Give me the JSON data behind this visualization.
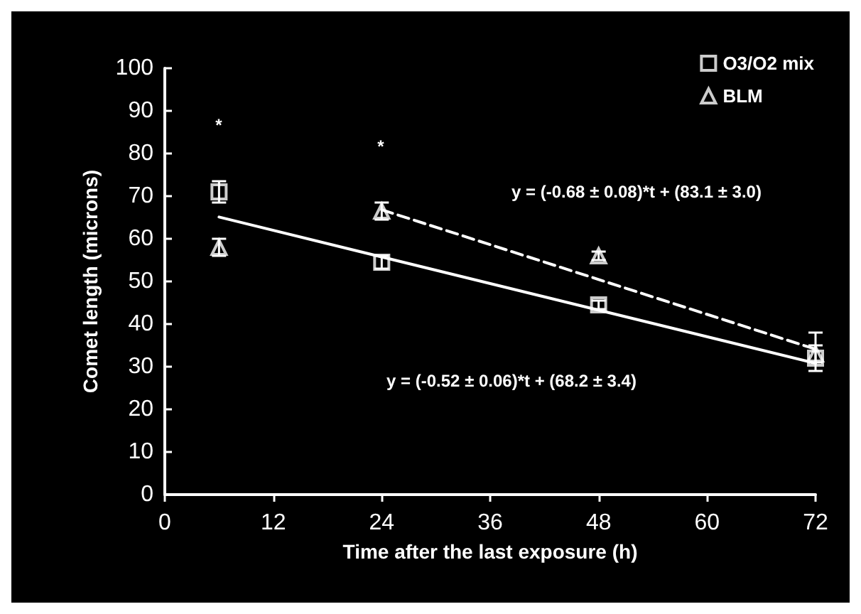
{
  "chart_data": {
    "type": "scatter",
    "xlabel": "Time after the last exposure (h)",
    "ylabel": "Comet length (microns)",
    "xlim": [
      0,
      72
    ],
    "xticks": [
      0,
      12,
      24,
      36,
      48,
      60,
      72
    ],
    "ylim": [
      0,
      100
    ],
    "yticks": [
      0,
      10,
      20,
      30,
      40,
      50,
      60,
      70,
      80,
      90,
      100
    ],
    "grid": false,
    "legend": "top right",
    "series": [
      {
        "name": "O3/O2 mix",
        "color": "#ffffff",
        "marker": "square",
        "x": [
          6,
          24,
          48,
          72
        ],
        "values": [
          71,
          54.5,
          44.5,
          32
        ],
        "errors": [
          2.5,
          1.5,
          1,
          [
            29,
            38
          ]
        ]
      },
      {
        "name": "BLM",
        "color": "#ffffff",
        "marker": "triangle",
        "x": [
          6,
          24,
          48,
          72
        ],
        "values": [
          58,
          66.5,
          56,
          33
        ],
        "errors": [
          2,
          2,
          1,
          2
        ]
      },
      {
        "type": "line",
        "color": "#ffffff",
        "line_style": "solid",
        "x": [
          6,
          72
        ],
        "values": [
          65.1,
          30.8
        ]
      },
      {
        "type": "line",
        "color": "#ffffff",
        "line_style": "dashed",
        "x": [
          24,
          72
        ],
        "values": [
          66.8,
          34.1
        ]
      }
    ],
    "annotations": [
      "y = (-0.68 ± 0.08)*t + (83.1 ± 3.0)",
      "y = (-0.52 ± 0.06)*t + (68.2 ± 3.4)",
      "*",
      "*"
    ]
  }
}
